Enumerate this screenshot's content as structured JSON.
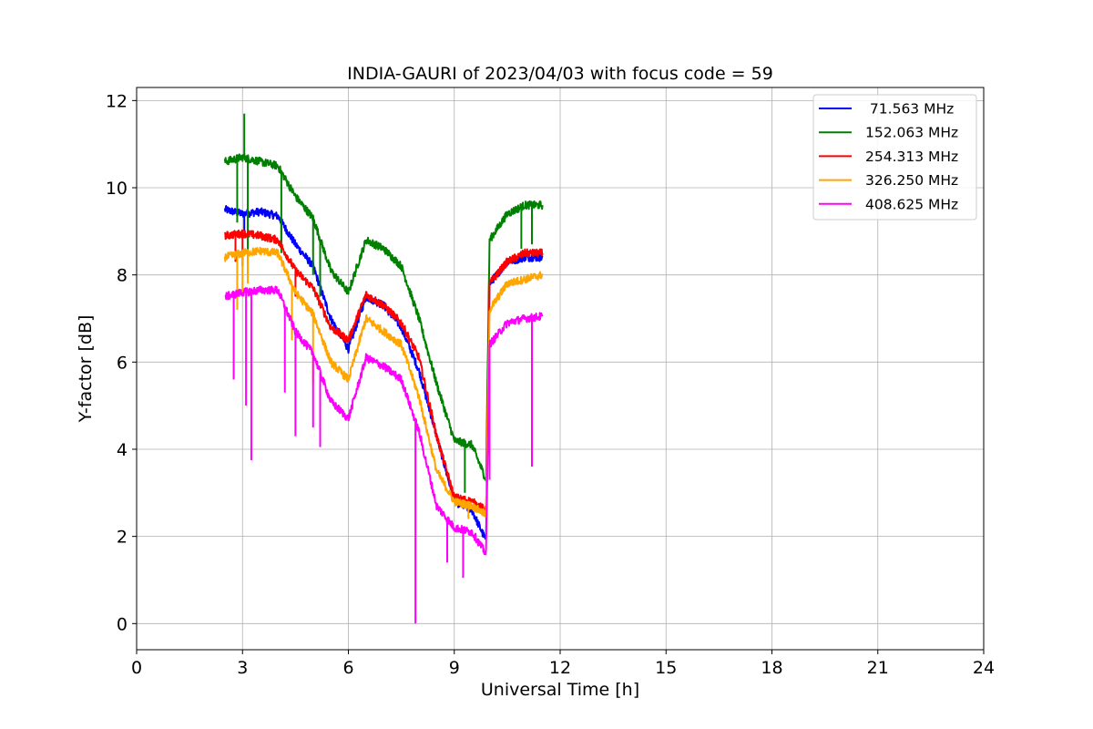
{
  "chart_data": {
    "type": "line",
    "title": "INDIA-GAURI of 2023/04/03 with focus code = 59",
    "xlabel": "Universal Time [h]",
    "ylabel": "Y-factor [dB]",
    "xlim": [
      0,
      24
    ],
    "ylim": [
      -0.6,
      12.3
    ],
    "xticks": [
      0,
      3,
      6,
      9,
      12,
      15,
      18,
      21,
      24
    ],
    "yticks": [
      0,
      2,
      4,
      6,
      8,
      10,
      12
    ],
    "grid": true,
    "legend_position": "top-right",
    "x": [
      2.5,
      3.0,
      3.5,
      4.0,
      4.5,
      5.0,
      5.5,
      6.0,
      6.5,
      7.0,
      7.5,
      8.0,
      8.5,
      9.0,
      9.5,
      9.9,
      10.0,
      10.5,
      11.0,
      11.5
    ],
    "series": [
      {
        "name": " 71.563 MHz",
        "color": "#0000ff",
        "values": [
          9.5,
          9.4,
          9.45,
          9.35,
          8.7,
          8.2,
          7.0,
          6.3,
          7.5,
          7.3,
          6.8,
          5.8,
          4.3,
          2.8,
          2.6,
          1.9,
          7.8,
          8.3,
          8.4,
          8.4
        ],
        "spikes": [
          [
            3.05,
            9.0
          ],
          [
            4.1,
            8.7
          ]
        ]
      },
      {
        "name": "152.063 MHz",
        "color": "#008000",
        "values": [
          10.6,
          10.7,
          10.6,
          10.5,
          9.8,
          9.3,
          8.1,
          7.6,
          8.8,
          8.6,
          8.2,
          7.0,
          5.5,
          4.2,
          4.1,
          3.3,
          8.8,
          9.4,
          9.6,
          9.6
        ],
        "spikes": [
          [
            2.85,
            9.2
          ],
          [
            3.05,
            11.7
          ],
          [
            3.15,
            8.0
          ],
          [
            4.1,
            8.5
          ],
          [
            5.0,
            8.0
          ],
          [
            5.2,
            7.5
          ],
          [
            9.3,
            3.0
          ],
          [
            10.9,
            8.6
          ],
          [
            11.2,
            8.7
          ]
        ]
      },
      {
        "name": "254.313 MHz",
        "color": "#ff0000",
        "values": [
          8.9,
          8.95,
          8.9,
          8.8,
          8.1,
          7.7,
          6.8,
          6.5,
          7.55,
          7.3,
          6.9,
          6.1,
          4.3,
          2.9,
          2.8,
          2.6,
          7.8,
          8.3,
          8.5,
          8.5
        ],
        "spikes": [
          [
            2.8,
            8.3
          ],
          [
            3.0,
            8.2
          ],
          [
            4.5,
            7.5
          ]
        ]
      },
      {
        "name": "326.250 MHz",
        "color": "#ffa500",
        "values": [
          8.4,
          8.5,
          8.55,
          8.5,
          7.6,
          7.1,
          6.0,
          5.6,
          7.0,
          6.7,
          6.4,
          5.2,
          3.5,
          2.8,
          2.7,
          2.5,
          7.2,
          7.8,
          7.9,
          8.0
        ],
        "spikes": [
          [
            2.85,
            7.2
          ],
          [
            3.0,
            7.6
          ],
          [
            3.15,
            7.8
          ],
          [
            4.4,
            6.5
          ],
          [
            5.0,
            5.5
          ],
          [
            9.4,
            2.4
          ]
        ]
      },
      {
        "name": "408.625 MHz",
        "color": "#ff00ff",
        "values": [
          7.5,
          7.6,
          7.65,
          7.65,
          6.7,
          6.2,
          5.1,
          4.7,
          6.1,
          5.9,
          5.6,
          4.4,
          2.7,
          2.2,
          2.1,
          1.6,
          6.4,
          6.9,
          7.0,
          7.05
        ],
        "spikes": [
          [
            2.75,
            5.6
          ],
          [
            3.1,
            5.0
          ],
          [
            3.25,
            3.75
          ],
          [
            4.2,
            5.3
          ],
          [
            4.5,
            4.3
          ],
          [
            5.0,
            4.5
          ],
          [
            5.2,
            4.05
          ],
          [
            7.9,
            0.0
          ],
          [
            8.8,
            1.4
          ],
          [
            9.25,
            1.05
          ],
          [
            10.0,
            3.3
          ],
          [
            11.2,
            3.6
          ]
        ]
      }
    ]
  }
}
